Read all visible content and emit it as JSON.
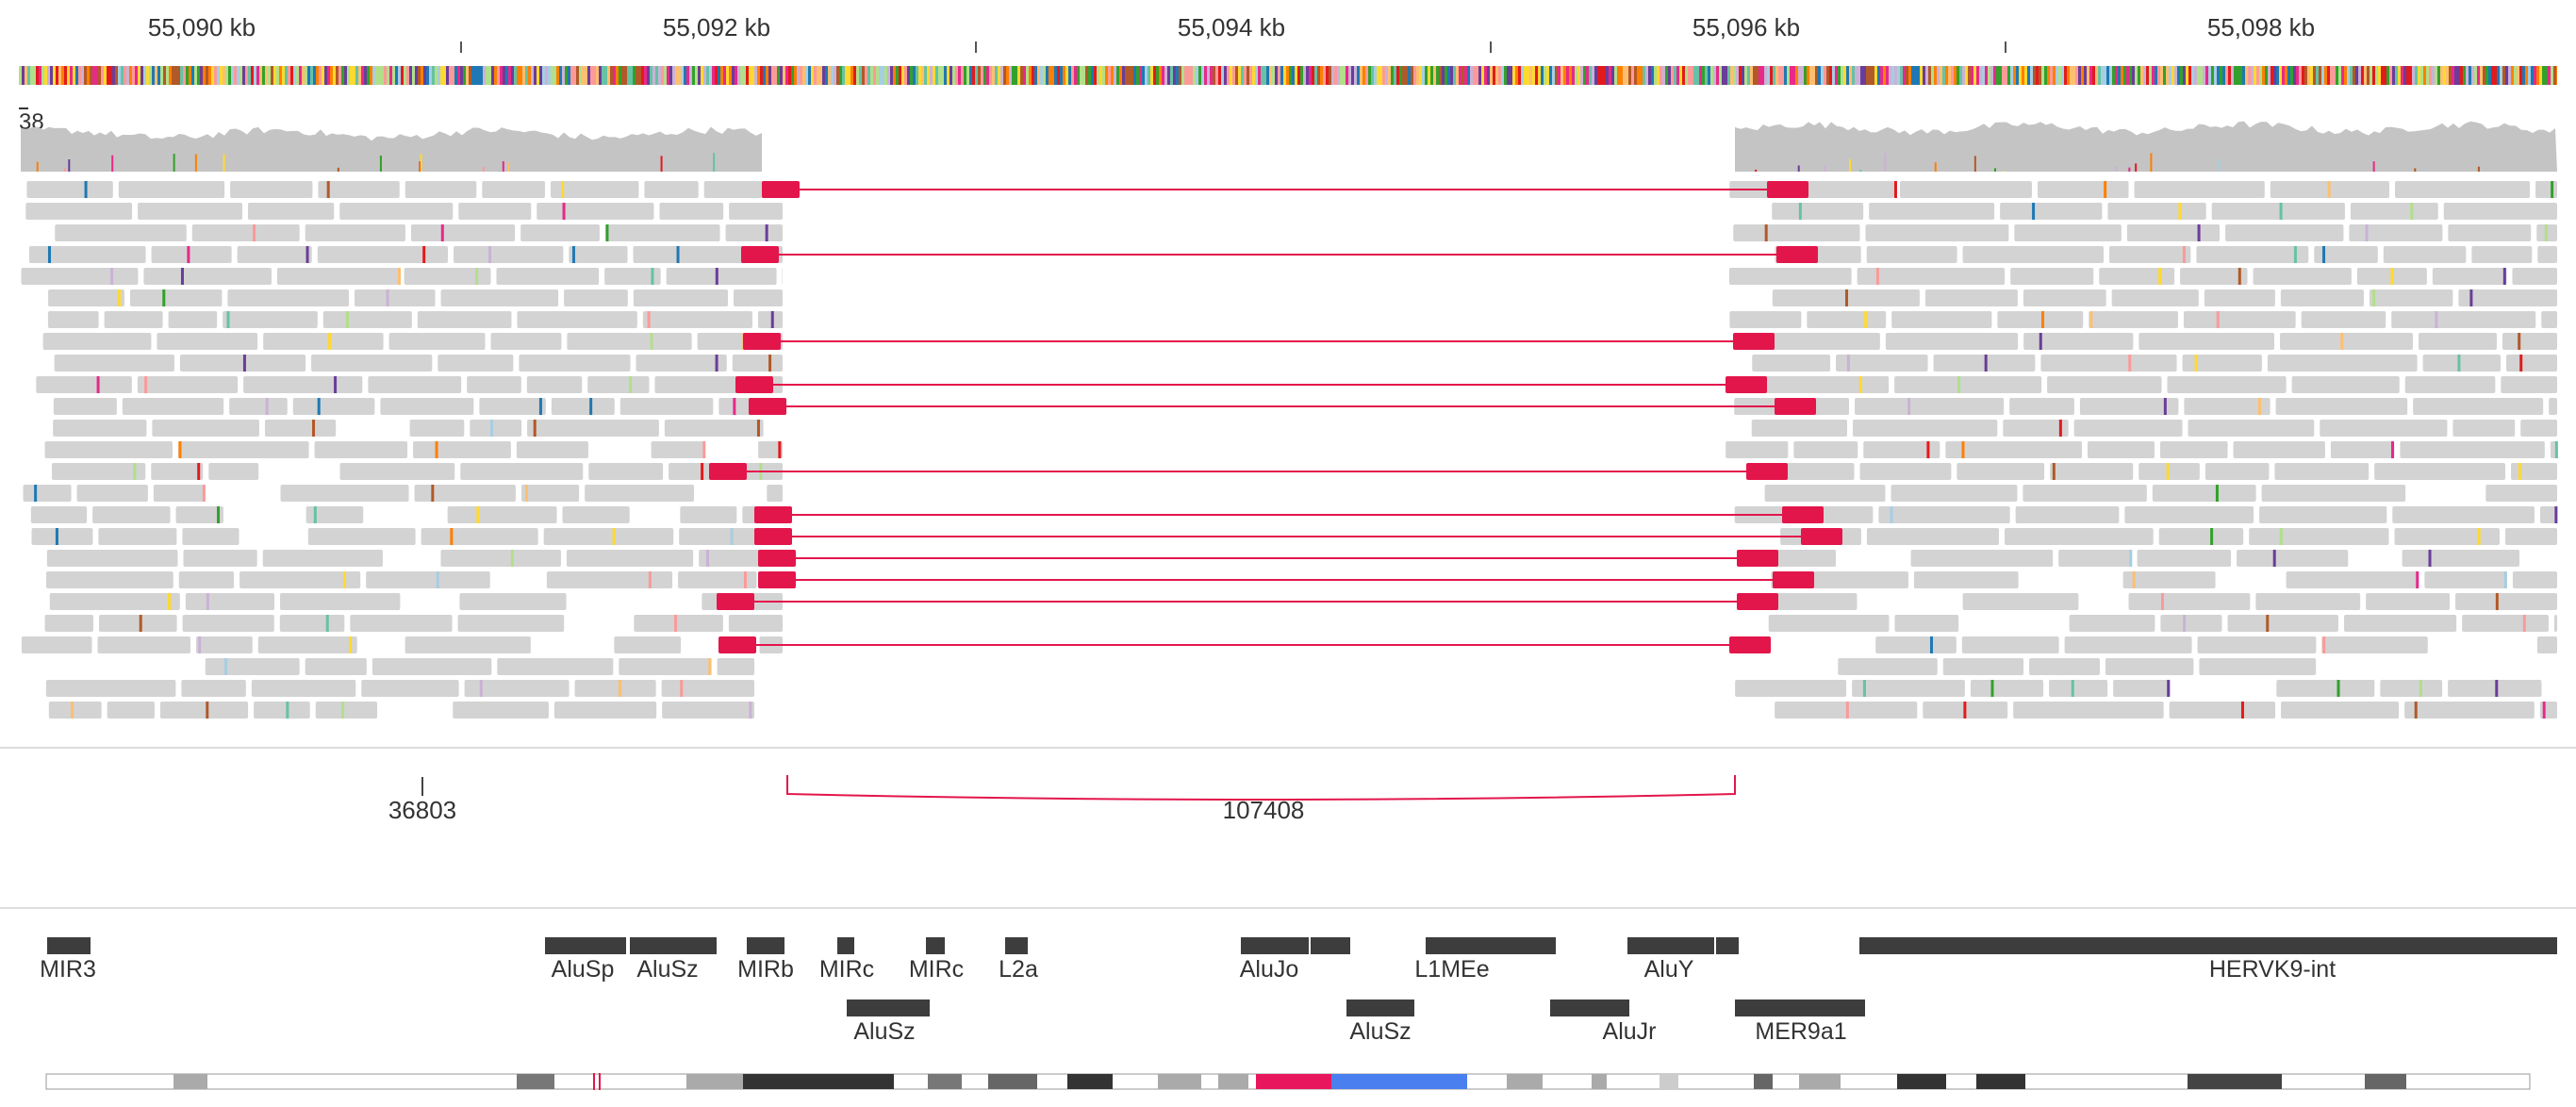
{
  "ruler": {
    "labels": [
      "55,090 kb",
      "55,092 kb",
      "55,094 kb",
      "55,096 kb",
      "55,098 kb"
    ]
  },
  "coverage": {
    "range_label": "38",
    "color": "#c4c4c4"
  },
  "colors": {
    "read": "#d3d3d3",
    "split_read": "#e3164b",
    "junction": "#e3164b",
    "repeat": "#3d3d3d",
    "ideogram_centromere": "#e8175d",
    "ideogram_stalk": "#4a7ff0"
  },
  "junctions": {
    "left_label": "36803",
    "right_label": "107408"
  },
  "repeats": {
    "row1": [
      "MIR3",
      "AluSp",
      "AluSz",
      "MIRb",
      "MIRc",
      "MIRc",
      "L2a",
      "AluJo",
      "L1MEe",
      "AluY",
      "HERVK9-int"
    ],
    "row2": [
      "AluSz",
      "AluSz",
      "AluJr",
      "MER9a1"
    ]
  }
}
